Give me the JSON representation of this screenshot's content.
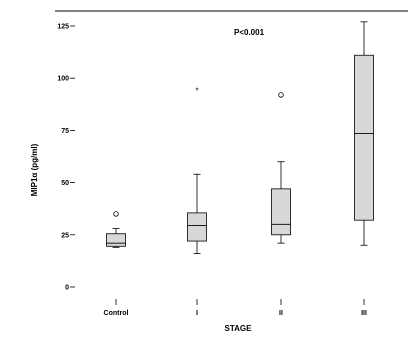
{
  "chart_data": {
    "type": "boxplot",
    "title": "",
    "annotation": "P<0.001",
    "xlabel": "STAGE",
    "ylabel": "MIP1α (pg/ml)",
    "ylim": [
      0,
      125
    ],
    "yticks": [
      0,
      25,
      50,
      75,
      100,
      125
    ],
    "ytick_labels": [
      "0",
      "25",
      "50",
      "75",
      "100",
      "125"
    ],
    "grid": false,
    "categories": [
      "Control",
      "I",
      "II",
      "III"
    ],
    "boxes": [
      {
        "category": "Control",
        "min": 19,
        "q1": 19.5,
        "median": 21,
        "q3": 25.5,
        "max": 28,
        "outliers": [
          {
            "value": 35,
            "marker": "circle"
          }
        ]
      },
      {
        "category": "I",
        "min": 16,
        "q1": 22,
        "median": 29.5,
        "q3": 35.5,
        "max": 54,
        "outliers": [
          {
            "value": 94,
            "marker": "star"
          }
        ]
      },
      {
        "category": "II",
        "min": 21,
        "q1": 25,
        "median": 30,
        "q3": 47,
        "max": 60,
        "outliers": [
          {
            "value": 92,
            "marker": "circle"
          }
        ]
      },
      {
        "category": "III",
        "min": 20,
        "q1": 32,
        "median": 73.5,
        "q3": 111,
        "max": 127,
        "outliers": []
      }
    ]
  }
}
